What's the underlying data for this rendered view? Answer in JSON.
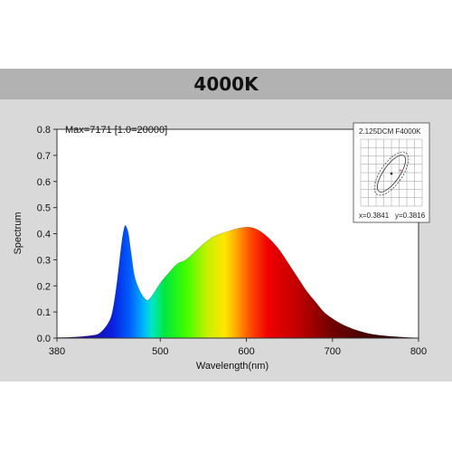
{
  "header": {
    "title": "4000K"
  },
  "annotation": "Max=7171  [1.0=20000]",
  "inset": {
    "title": "2.125DCM  F4000K",
    "x_readout": "x=0.3841",
    "y_readout": "y=0.3816"
  },
  "colors": {
    "header_bg": "#b2b2b2",
    "panel_bg": "#d9d9d9",
    "plot_bg": "#ffffff"
  },
  "chart_data": {
    "type": "area",
    "title": "",
    "xlabel": "Wavelength(nm)",
    "ylabel": "Spectrum",
    "xlim": [
      380,
      800
    ],
    "ylim": [
      0,
      0.8
    ],
    "xticks": [
      380,
      500,
      600,
      700,
      800
    ],
    "yticks": [
      0.0,
      0.1,
      0.2,
      0.3,
      0.4,
      0.5,
      0.6,
      0.7,
      0.8
    ],
    "x": [
      380,
      400,
      420,
      430,
      440,
      445,
      450,
      455,
      458,
      460,
      463,
      466,
      470,
      475,
      480,
      485,
      490,
      500,
      510,
      520,
      530,
      540,
      550,
      560,
      570,
      580,
      590,
      600,
      610,
      620,
      630,
      640,
      650,
      660,
      670,
      680,
      690,
      700,
      710,
      720,
      730,
      740,
      750,
      760,
      770,
      780,
      790,
      800
    ],
    "y": [
      0.002,
      0.004,
      0.01,
      0.02,
      0.06,
      0.11,
      0.22,
      0.36,
      0.42,
      0.43,
      0.4,
      0.33,
      0.24,
      0.19,
      0.16,
      0.145,
      0.16,
      0.21,
      0.25,
      0.285,
      0.3,
      0.33,
      0.36,
      0.385,
      0.4,
      0.41,
      0.42,
      0.425,
      0.42,
      0.4,
      0.37,
      0.33,
      0.28,
      0.23,
      0.18,
      0.14,
      0.1,
      0.075,
      0.055,
      0.04,
      0.028,
      0.019,
      0.013,
      0.009,
      0.006,
      0.004,
      0.002,
      0.001
    ]
  }
}
